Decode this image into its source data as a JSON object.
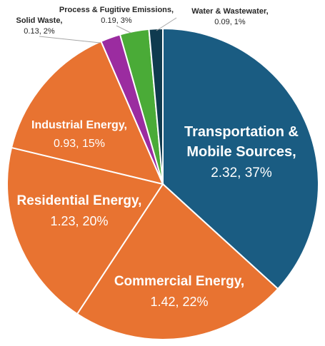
{
  "chart_data": {
    "type": "pie",
    "legend": "none",
    "slices": [
      {
        "name": "Transportation & Mobile Sources,",
        "value": 2.32,
        "value_label": "2.32, 37%",
        "color": "#1a5c82"
      },
      {
        "name": "Commercial Energy,",
        "value": 1.42,
        "value_label": "1.42, 22%",
        "color": "#e87331"
      },
      {
        "name": "Residential Energy,",
        "value": 1.23,
        "value_label": "1.23, 20%",
        "color": "#e87331"
      },
      {
        "name": "Industrial Energy,",
        "value": 0.93,
        "value_label": "0.93, 15%",
        "color": "#e87331"
      },
      {
        "name": "Solid Waste,",
        "value": 0.13,
        "value_label": "0.13, 2%",
        "color": "#9b2ca0"
      },
      {
        "name": "Process & Fugitive Emissions,",
        "value": 0.19,
        "value_label": "0.19, 3%",
        "color": "#4aab37"
      },
      {
        "name": "Water & Wastewater,",
        "value": 0.09,
        "value_label": "0.09, 1%",
        "color": "#0f3a4f"
      }
    ]
  }
}
